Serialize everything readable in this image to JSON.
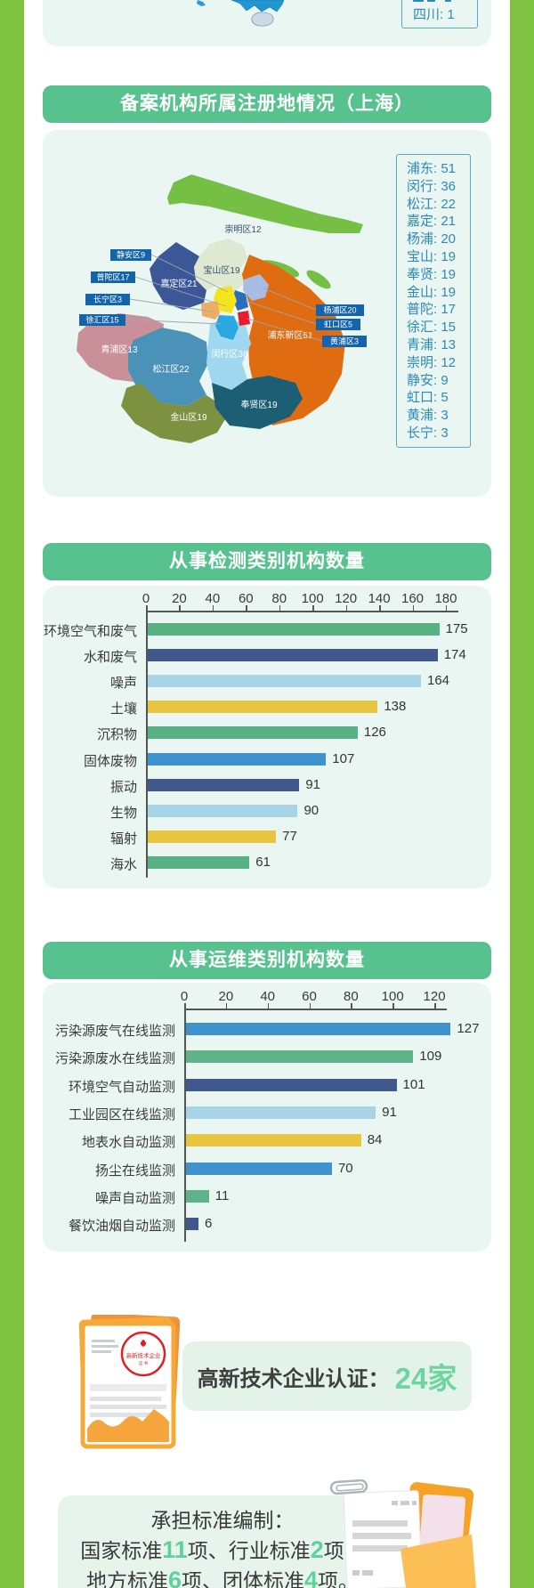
{
  "colors": {
    "side_green": "#7fc241",
    "header_green": "#57c28e",
    "card_bg": "#eaf6f1",
    "legend_blue": "#2e88ba",
    "callout_blue": "#1464ad",
    "highlight_green": "#5fd29b",
    "axis_gray": "#555555"
  },
  "top_fragment": {
    "legend_item": "四川: 1"
  },
  "shanghai_section": {
    "header": "备案机构所属注册地情况（上海）",
    "legend": [
      {
        "label": "浦东",
        "value": 51
      },
      {
        "label": "闵行",
        "value": 36
      },
      {
        "label": "松江",
        "value": 22
      },
      {
        "label": "嘉定",
        "value": 21
      },
      {
        "label": "杨浦",
        "value": 20
      },
      {
        "label": "宝山",
        "value": 19
      },
      {
        "label": "奉贤",
        "value": 19
      },
      {
        "label": "金山",
        "value": 19
      },
      {
        "label": "普陀",
        "value": 17
      },
      {
        "label": "徐汇",
        "value": 15
      },
      {
        "label": "青浦",
        "value": 13
      },
      {
        "label": "崇明",
        "value": 12
      },
      {
        "label": "静安",
        "value": 9
      },
      {
        "label": "虹口",
        "value": 5
      },
      {
        "label": "黄浦",
        "value": 3
      },
      {
        "label": "长宁",
        "value": 3
      }
    ],
    "map_labels": {
      "chongming": "崇明区12",
      "baoshan": "宝山区19",
      "jiading": "嘉定区21",
      "qingpu": "青浦区13",
      "songjiang": "松江区22",
      "jinshan": "金山区19",
      "minhang": "闵行区36",
      "fengxian": "奉贤区19",
      "pudong": "浦东新区51",
      "jingan": "静安区9",
      "putuo": "普陀区17",
      "changning": "长宁区3",
      "xuhui": "徐汇区15",
      "yangpu": "杨浦区20",
      "hongkou": "虹口区5",
      "huangpu": "黄浦区3"
    },
    "district_colors": {
      "chongming": "#74bf44",
      "baoshan": "#dfe9d2",
      "jiading": "#3c5796",
      "pudong": "#e06c12",
      "qingpu": "#c9909a",
      "songjiang": "#4a92b8",
      "jinshan": "#7e9140",
      "minhang": "#9fd8ef",
      "fengxian": "#1c5f74",
      "yangpu": "#a8bce4",
      "hongkou": "#2a6cc0",
      "putuo": "#f6e31b",
      "huangpu": "#e81c2e",
      "xuhui": "#2aa9e0",
      "changning": "#eead67"
    }
  },
  "chart_data": [
    {
      "type": "bar",
      "orientation": "horizontal",
      "title": "从事检测类别机构数量",
      "categories": [
        "环境空气和废气",
        "水和废气",
        "噪声",
        "土壤",
        "沉积物",
        "固体废物",
        "振动",
        "生物",
        "辐射",
        "海水"
      ],
      "values": [
        175,
        174,
        164,
        138,
        126,
        107,
        91,
        90,
        77,
        61
      ],
      "bar_colors": [
        "#57b183",
        "#41588c",
        "#a8d4e8",
        "#e8c53e",
        "#57b183",
        "#3e93cf",
        "#41588c",
        "#a8d4e8",
        "#e8c53e",
        "#57b183"
      ],
      "ticks": [
        0,
        20,
        40,
        60,
        80,
        100,
        120,
        140,
        160,
        180
      ],
      "xlim": [
        0,
        188
      ],
      "axis_position": "top",
      "grid": false,
      "legend": "none",
      "value_labels": true
    },
    {
      "type": "bar",
      "orientation": "horizontal",
      "title": "从事运维类别机构数量",
      "categories": [
        "污染源废气在线监测",
        "污染源废水在线监测",
        "环境空气自动监测",
        "工业园区在线监测",
        "地表水自动监测",
        "扬尘在线监测",
        "噪声自动监测",
        "餐饮油烟自动监测"
      ],
      "values": [
        127,
        109,
        101,
        91,
        84,
        70,
        11,
        6
      ],
      "bar_colors": [
        "#3e93cf",
        "#5eb488",
        "#41588c",
        "#a8d4e8",
        "#e8c53e",
        "#3e93cf",
        "#5eb488",
        "#41588c"
      ],
      "ticks": [
        0,
        20,
        40,
        60,
        80,
        100,
        120
      ],
      "xlim": [
        0,
        132
      ],
      "axis_position": "top",
      "grid": false,
      "legend": "none",
      "value_labels": true
    }
  ],
  "certification": {
    "label": "高新技术企业认证：",
    "count_text": "24家"
  },
  "standards": {
    "title": "承担标准编制：",
    "line2": [
      {
        "text": "国家标准"
      },
      {
        "text": "11",
        "highlight": true
      },
      {
        "text": "项、行业标准"
      },
      {
        "text": "2",
        "highlight": true
      },
      {
        "text": "项、"
      }
    ],
    "line3": [
      {
        "text": "地方标准"
      },
      {
        "text": "6",
        "highlight": true
      },
      {
        "text": "项、团体标准"
      },
      {
        "text": "4",
        "highlight": true
      },
      {
        "text": "项。"
      }
    ]
  }
}
